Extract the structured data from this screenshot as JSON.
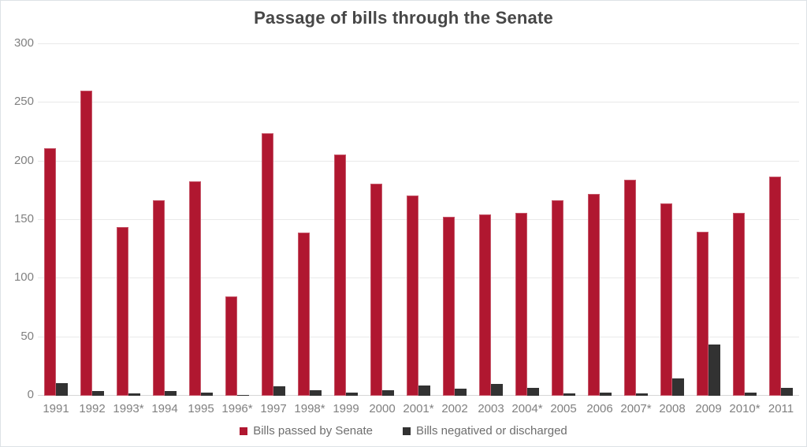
{
  "title": "Passage of bills through the Senate",
  "colors": {
    "bar_red": "#b01730",
    "bar_dark": "#323232",
    "gridline": "#e9e9e9",
    "axis_line": "#d6d6d6",
    "tick_label": "#808080",
    "legend_text": "#6e6e6e",
    "title_text": "#474747"
  },
  "chart_data": {
    "type": "bar",
    "title": "Passage of bills through the Senate",
    "categories": [
      "1991",
      "1992",
      "1993*",
      "1994",
      "1995",
      "1996*",
      "1997",
      "1998*",
      "1999",
      "2000",
      "2001*",
      "2002",
      "2003",
      "2004*",
      "2005",
      "2006",
      "2007*",
      "2008",
      "2009",
      "2010*",
      "2011"
    ],
    "series": [
      {
        "name": "Bills passed by Senate",
        "color": "#b01730",
        "values": [
          211,
          260,
          144,
          167,
          183,
          85,
          224,
          139,
          206,
          181,
          171,
          153,
          155,
          156,
          167,
          172,
          184,
          164,
          140,
          156,
          187
        ]
      },
      {
        "name": "Bills negatived or discharged",
        "color": "#323232",
        "values": [
          11,
          4,
          2,
          4,
          3,
          1,
          8,
          5,
          3,
          5,
          9,
          6,
          10,
          7,
          2,
          3,
          2,
          15,
          44,
          3,
          7
        ]
      }
    ],
    "xlabel": "",
    "ylabel": "",
    "ylim": [
      0,
      300
    ],
    "yticks": [
      0,
      50,
      100,
      150,
      200,
      250,
      300
    ],
    "grid": true,
    "legend_position": "bottom"
  }
}
